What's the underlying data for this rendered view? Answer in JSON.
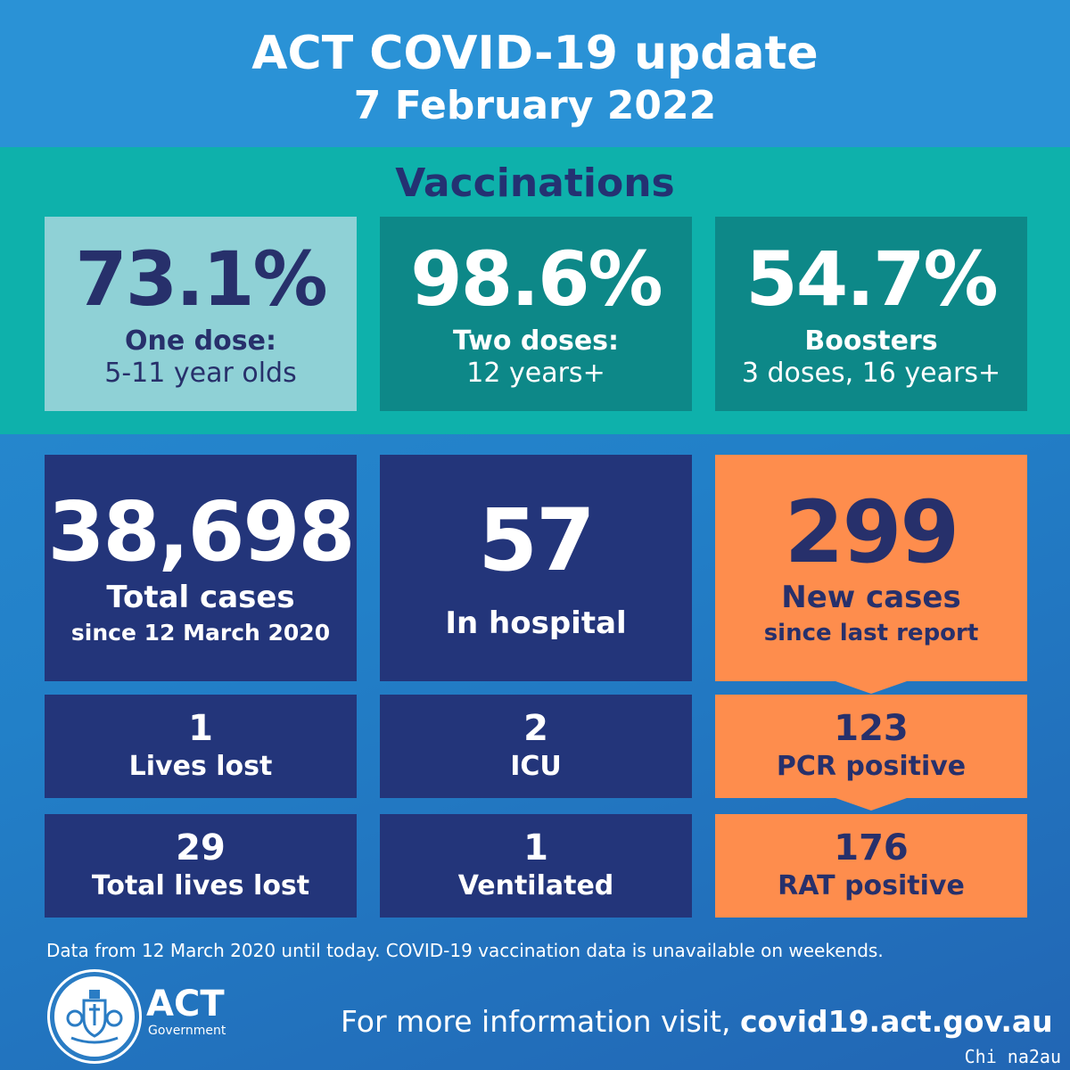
{
  "header": {
    "title": "ACT COVID-19 update",
    "date": "7 February 2022"
  },
  "vaccinations": {
    "heading": "Vaccinations",
    "cards": [
      {
        "value": "73.1%",
        "label": "One dose:",
        "sublabel": "5-11 year olds"
      },
      {
        "value": "98.6%",
        "label": "Two doses:",
        "sublabel": "12 years+"
      },
      {
        "value": "54.7%",
        "label": "Boosters",
        "sublabel": "3 doses, 16 years+"
      }
    ]
  },
  "stats": {
    "total_cases": {
      "value": "38,698",
      "label": "Total cases",
      "sublabel": "since 12 March 2020"
    },
    "in_hospital": {
      "value": "57",
      "label": "In hospital"
    },
    "new_cases": {
      "value": "299",
      "label": "New cases",
      "sublabel": "since last report"
    },
    "lives_lost": {
      "value": "1",
      "label": "Lives lost"
    },
    "icu": {
      "value": "2",
      "label": "ICU"
    },
    "pcr_positive": {
      "value": "123",
      "label": "PCR positive"
    },
    "total_lives_lost": {
      "value": "29",
      "label": "Total lives lost"
    },
    "ventilated": {
      "value": "1",
      "label": "Ventilated"
    },
    "rat_positive": {
      "value": "176",
      "label": "RAT positive"
    }
  },
  "footnote": "Data from 12 March 2020 until today.  COVID-19 vaccination data is unavailable on weekends.",
  "footer": {
    "logo_text": "ACT",
    "logo_subtext": "Government",
    "info_prefix": "For more information visit, ",
    "info_url": "covid19.act.gov.au"
  },
  "watermark": "Chi na2au",
  "colors": {
    "navy": "#23357a",
    "orange": "#fe8d4d",
    "teal": "#0eb1ab",
    "dark_teal": "#0d8888",
    "light_teal": "#8fd1d6",
    "blue": "#2a92d6"
  }
}
